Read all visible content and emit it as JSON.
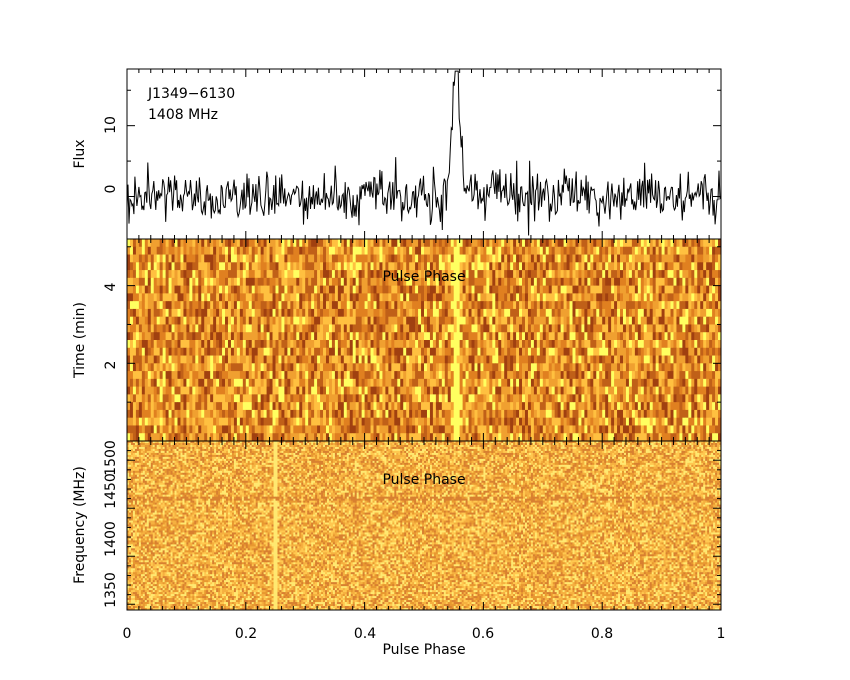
{
  "chart_data": [
    {
      "type": "line",
      "panel": "profile",
      "annotations": [
        "J1349−6130",
        "1408 MHz"
      ],
      "ylabel": "Flux",
      "xlim": [
        0,
        1
      ],
      "ylim": [
        -6,
        18
      ],
      "y_ticks": [
        "0",
        "10"
      ],
      "x_ticks": [
        "0",
        "0.2",
        "0.4",
        "0.6",
        "0.8",
        "1"
      ],
      "x_nbins": 600,
      "baseline_noise_sd": 2.6,
      "pulse": {
        "center": 0.553,
        "width": 0.006,
        "peak": 17,
        "tail": 0.012
      },
      "color": "#000000"
    },
    {
      "type": "heatmap",
      "panel": "time-phase",
      "overlay_label": "Pulse Phase",
      "ylabel": "Time (min)",
      "xlim": [
        0,
        1
      ],
      "ylim": [
        0,
        5.2
      ],
      "y_ticks": [
        "2",
        "4"
      ],
      "x_ticks": [
        "0",
        "0.2",
        "0.4",
        "0.6",
        "0.8",
        "1"
      ],
      "n_phase_bins": 200,
      "n_subints": 26,
      "pulse_phase": 0.555,
      "colormap": [
        "#ffff60",
        "#ffc040",
        "#f0a030",
        "#e08020",
        "#c06018",
        "#a04010"
      ]
    },
    {
      "type": "heatmap",
      "panel": "frequency-phase",
      "overlay_label": "Pulse Phase",
      "xlabel": "Pulse Phase",
      "ylabel": "Frequency (MHz)",
      "xlim": [
        0,
        1
      ],
      "ylim": [
        1344,
        1520
      ],
      "y_ticks": [
        "1350",
        "1400",
        "1450",
        "1500"
      ],
      "x_ticks": [
        "0",
        "0.2",
        "0.4",
        "0.6",
        "0.8",
        "1"
      ],
      "n_phase_bins": 300,
      "n_channels": 85,
      "rfi_phase": 0.25,
      "rfi_channel_mhz": 1460,
      "colormap": [
        "#ffe870",
        "#ffc850",
        "#f5b040",
        "#e89830",
        "#d88030"
      ]
    }
  ]
}
